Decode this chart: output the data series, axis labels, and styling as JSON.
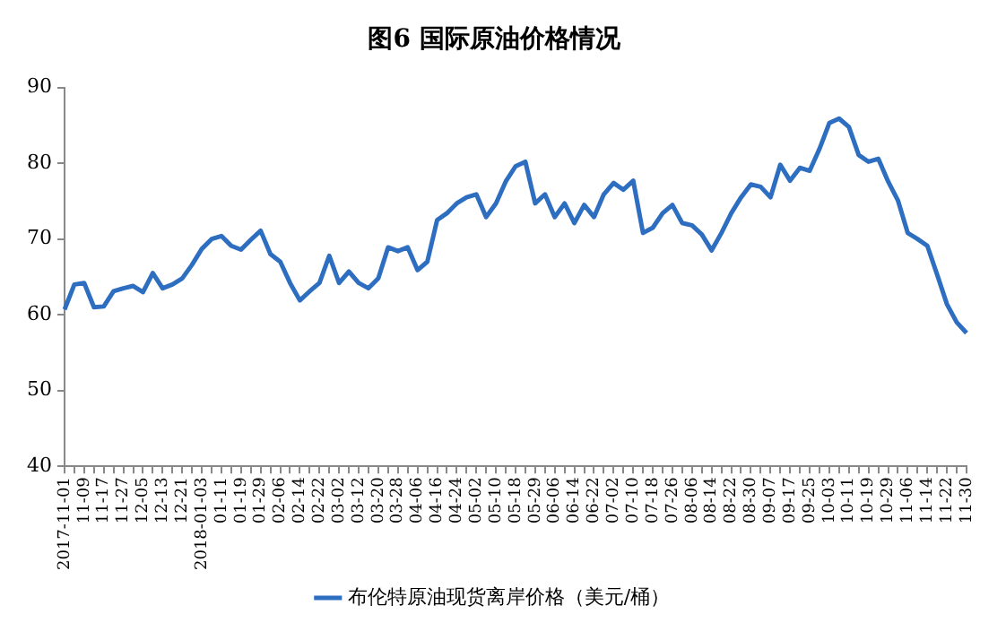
{
  "chart_data": {
    "type": "line",
    "title": "图6 国际原油价格情况",
    "categories": [
      "2017-11-01",
      null,
      "11-09",
      null,
      "11-17",
      null,
      "11-27",
      null,
      "12-05",
      null,
      "12-13",
      null,
      "12-21",
      null,
      "2018-01-03",
      null,
      "01-11",
      null,
      "01-19",
      null,
      "01-29",
      null,
      "02-06",
      null,
      "02-14",
      null,
      "02-22",
      null,
      "03-02",
      null,
      "03-12",
      null,
      "03-20",
      null,
      "03-28",
      null,
      "04-06",
      null,
      "04-16",
      null,
      "04-24",
      null,
      "05-02",
      null,
      "05-10",
      null,
      "05-18",
      null,
      "05-29",
      null,
      "06-06",
      null,
      "06-14",
      null,
      "06-22",
      null,
      "07-02",
      null,
      "07-10",
      null,
      "07-18",
      null,
      "07-26",
      null,
      "08-06",
      null,
      "08-14",
      null,
      "08-22",
      null,
      "08-30",
      null,
      "09-07",
      null,
      "09-17",
      null,
      "09-25",
      null,
      "10-03",
      null,
      "10-11",
      null,
      "10-19",
      null,
      "10-29",
      null,
      "11-06",
      null,
      "11-14",
      null,
      "11-22",
      null,
      "11-30"
    ],
    "series": [
      {
        "name": "布伦特原油现货离岸价格（美元/桶）",
        "color": "#2e6ec0",
        "values": [
          60.7,
          64.0,
          64.2,
          61.0,
          61.1,
          63.1,
          63.5,
          63.8,
          63.0,
          65.5,
          63.5,
          64.0,
          64.8,
          66.6,
          68.7,
          70.0,
          70.4,
          69.1,
          68.6,
          69.9,
          71.1,
          68.0,
          67.0,
          64.2,
          61.9,
          63.1,
          64.2,
          67.8,
          64.2,
          65.7,
          64.2,
          63.5,
          64.8,
          68.9,
          68.4,
          68.9,
          65.9,
          67.0,
          72.5,
          73.4,
          74.7,
          75.5,
          75.9,
          72.9,
          74.7,
          77.6,
          79.6,
          80.2,
          74.7,
          75.9,
          72.9,
          74.7,
          72.1,
          74.5,
          72.9,
          75.9,
          77.4,
          76.5,
          77.7,
          70.8,
          71.5,
          73.4,
          74.5,
          72.1,
          71.8,
          70.6,
          68.5,
          70.8,
          73.4,
          75.5,
          77.2,
          76.9,
          75.5,
          79.8,
          77.7,
          79.4,
          79.0,
          81.9,
          85.3,
          85.9,
          84.8,
          81.1,
          80.2,
          80.6,
          77.6,
          75.1,
          70.8,
          70.0,
          69.1,
          65.3,
          61.4,
          59.0,
          57.6
        ]
      }
    ],
    "ylim": [
      40,
      90
    ],
    "yticks": [
      40,
      50,
      60,
      70,
      80,
      90
    ],
    "grid": false,
    "legend": "bottom",
    "marker": "none",
    "line_style": "solid"
  }
}
